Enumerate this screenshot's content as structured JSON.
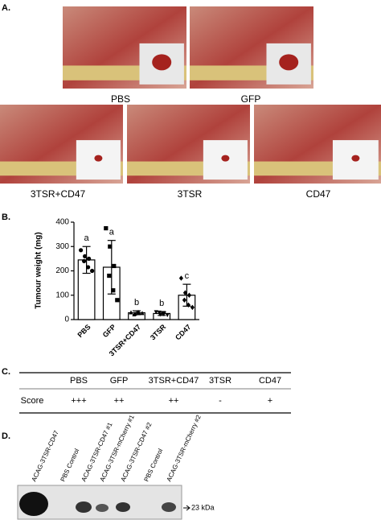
{
  "panel_labels": [
    "A.",
    "B.",
    "C.",
    "D."
  ],
  "panel_a": {
    "captions": [
      "PBS",
      "GFP",
      "3TSR+CD47",
      "3TSR",
      "CD47"
    ]
  },
  "chart_data": {
    "type": "bar",
    "y_label": "Tumour weight (mg)",
    "categories": [
      "PBS",
      "GFP",
      "3TSR+CD47",
      "3TSR",
      "CD47"
    ],
    "values": [
      245,
      215,
      28,
      25,
      100
    ],
    "errors": [
      55,
      110,
      8,
      8,
      45
    ],
    "points": [
      [
        285,
        260,
        250,
        240,
        215,
        200
      ],
      [
        375,
        300,
        220,
        180,
        120,
        80
      ],
      [
        30,
        25,
        28,
        22,
        32,
        27
      ],
      [
        30,
        20,
        25,
        28,
        22,
        18
      ],
      [
        170,
        110,
        100,
        80,
        60,
        50
      ]
    ],
    "markers": [
      "circle",
      "square",
      "triangle-up",
      "triangle-down",
      "diamond"
    ],
    "annotations": [
      "a",
      "a",
      "b",
      "b",
      "c"
    ],
    "color": "#ffffff",
    "ylim": [
      0,
      400
    ],
    "yticks": [
      0,
      100,
      200,
      300,
      400
    ]
  },
  "table": {
    "header": [
      "PBS",
      "GFP",
      "3TSR+CD47",
      "3TSR",
      "CD47"
    ],
    "rows": [
      [
        "Score",
        "+++",
        "++",
        "++",
        "-",
        "+"
      ]
    ]
  },
  "blot": {
    "lanes": [
      "ACAG-3TSR-CD47",
      "PBS Control",
      "ACAG-3TSR-CD47 #1",
      "ACAG-3TSR-mCherry #1",
      "ACAG-3TSR-CD47 #2",
      "PBS Control",
      "ACAG-3TSR-mCherry #2"
    ],
    "marker": "23 kDa"
  }
}
